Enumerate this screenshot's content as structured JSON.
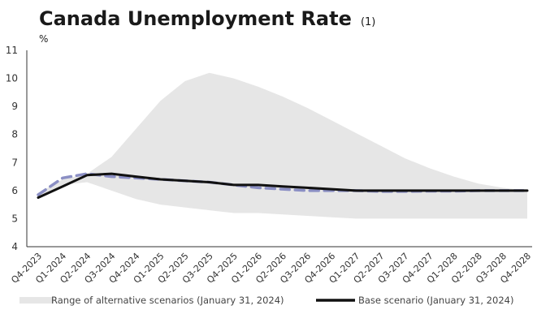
{
  "chart_data": {
    "type": "line",
    "title": "Canada Unemployment Rate",
    "title_note": "(1)",
    "ylabel": "%",
    "ylim": [
      4,
      11
    ],
    "yticks": [
      4,
      5,
      6,
      7,
      8,
      9,
      10,
      11
    ],
    "grid": false,
    "legend_position": "bottom",
    "categories": [
      "Q4-2023",
      "Q1-2024",
      "Q2-2024",
      "Q3-2024",
      "Q4-2024",
      "Q1-2025",
      "Q2-2025",
      "Q3-2025",
      "Q4-2025",
      "Q1-2026",
      "Q2-2026",
      "Q3-2026",
      "Q4-2026",
      "Q1-2027",
      "Q2-2027",
      "Q3-2027",
      "Q4-2027",
      "Q1-2028",
      "Q2-2028",
      "Q3-2028",
      "Q4-2028"
    ],
    "band": {
      "name": "Range of alternative scenarios (January 31, 2024)",
      "color": "#e6e6e6",
      "lower": [
        5.8,
        6.2,
        6.3,
        6.0,
        5.7,
        5.5,
        5.4,
        5.3,
        5.2,
        5.2,
        5.15,
        5.1,
        5.05,
        5.0,
        5.0,
        5.0,
        5.0,
        5.0,
        5.0,
        5.0,
        5.0
      ],
      "upper": [
        5.9,
        6.4,
        6.6,
        7.2,
        8.2,
        9.2,
        9.9,
        10.2,
        10.0,
        9.7,
        9.35,
        8.95,
        8.5,
        8.05,
        7.6,
        7.15,
        6.8,
        6.5,
        6.25,
        6.1,
        6.0
      ]
    },
    "series": [
      {
        "name": "Base scenario (January 31, 2024)",
        "color": "#111111",
        "style": "solid",
        "values": [
          5.75,
          6.15,
          6.55,
          6.6,
          6.5,
          6.4,
          6.35,
          6.3,
          6.2,
          6.2,
          6.15,
          6.1,
          6.05,
          6.0,
          6.0,
          6.0,
          6.0,
          6.0,
          6.0,
          6.0,
          6.0
        ]
      },
      {
        "name": "",
        "color": "#8b8fc4",
        "style": "dashed",
        "values": [
          5.85,
          6.45,
          6.6,
          6.5,
          6.45,
          6.4,
          6.35,
          6.3,
          6.2,
          6.1,
          6.05,
          6.0,
          6.0,
          6.0,
          5.97,
          5.97,
          5.98,
          5.98,
          6.0,
          6.0,
          6.0
        ]
      }
    ]
  }
}
